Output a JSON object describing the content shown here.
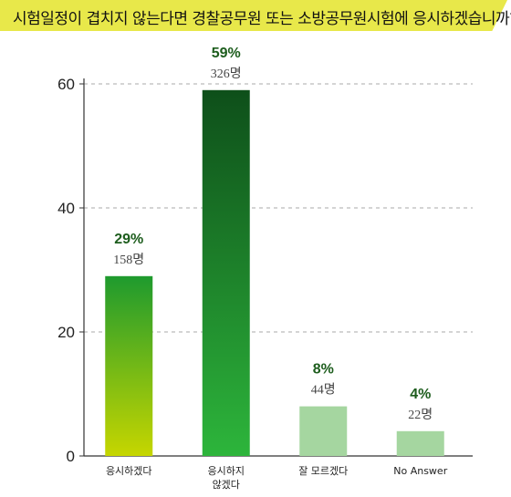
{
  "title": "시험일정이 겹치지 않는다면 경찰공무원 또는 소방공무원시험에 응시하겠습니까?",
  "chart_data": {
    "type": "bar",
    "categories": [
      {
        "lines": [
          "응시하겠다"
        ]
      },
      {
        "lines": [
          "응시하지",
          "않겠다"
        ]
      },
      {
        "lines": [
          "잘 모르겠다"
        ]
      },
      {
        "lines": [
          "No Answer"
        ]
      }
    ],
    "values": [
      29,
      59,
      8,
      4
    ],
    "percent_labels": [
      "29%",
      "59%",
      "8%",
      "4%"
    ],
    "count_labels": [
      "158명",
      "326명",
      "44명",
      "22명"
    ],
    "yticks": [
      "0",
      "20",
      "40",
      "60"
    ],
    "ylim": [
      0,
      60
    ],
    "grid": true,
    "colors": {
      "bar_yellow_green_top": "#1e9a2e",
      "bar_yellow_green_bottom": "#c6d600",
      "bar_dark_top": "#0e4f1a",
      "bar_dark_bottom": "#2db53b",
      "bar_light": "#a5d6a0",
      "title_banner": "#e8e84a",
      "label_green": "#1d5d1d"
    }
  }
}
